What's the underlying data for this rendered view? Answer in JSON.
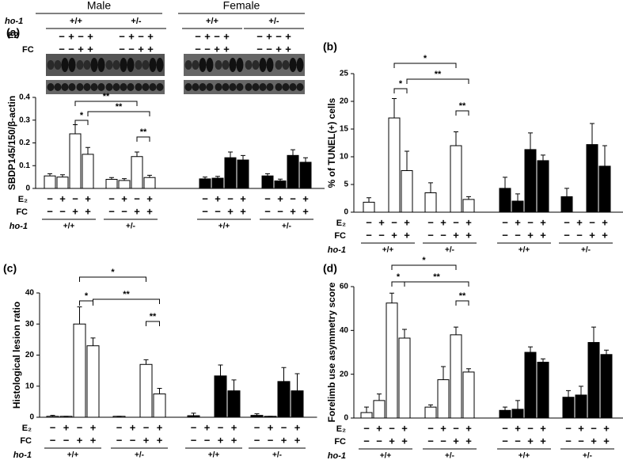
{
  "chart_data": [
    {
      "type": "bar",
      "label": "(a)",
      "ylabel": "SBDP145/150/β-actin",
      "ylim": [
        0,
        0.4
      ],
      "yticks": [
        0,
        0.1,
        0.2,
        0.3,
        0.4
      ],
      "header": {
        "sexes": [
          "Male",
          "Female"
        ],
        "e2_label": "E2"
      },
      "e2_label": "E₂",
      "fc_label": "FC",
      "geno_label": "ho-1",
      "e2_signs": [
        "−",
        "+",
        "−",
        "+"
      ],
      "fc_signs": [
        "−",
        "−",
        "+",
        "+"
      ],
      "groups": [
        {
          "genotype": "+/+",
          "color": "#ffffff",
          "values": [
            0.055,
            0.05,
            0.24,
            0.15
          ],
          "errors": [
            0.01,
            0.01,
            0.04,
            0.03
          ]
        },
        {
          "genotype": "+/-",
          "color": "#ffffff",
          "values": [
            0.04,
            0.035,
            0.14,
            0.048
          ],
          "errors": [
            0.008,
            0.008,
            0.02,
            0.01
          ]
        },
        {
          "genotype": "+/+",
          "color": "#000000",
          "values": [
            0.042,
            0.045,
            0.135,
            0.125
          ],
          "errors": [
            0.008,
            0.008,
            0.025,
            0.02
          ]
        },
        {
          "genotype": "+/-",
          "color": "#000000",
          "values": [
            0.055,
            0.033,
            0.145,
            0.115
          ],
          "errors": [
            0.01,
            0.008,
            0.025,
            0.02
          ]
        }
      ],
      "brackets": [
        {
          "label": "**",
          "from": 2,
          "to": 6
        },
        {
          "label": "**",
          "from": 3,
          "to": 7
        },
        {
          "label": "*",
          "from": 2,
          "to": 3
        },
        {
          "label": "**",
          "from": 6,
          "to": 7
        }
      ]
    },
    {
      "type": "bar",
      "label": "(b)",
      "ylabel": "% of TUNEL(+) cells",
      "ylim": [
        0,
        25
      ],
      "yticks": [
        0,
        5,
        10,
        15,
        20,
        25
      ],
      "e2_label": "E₂",
      "fc_label": "FC",
      "geno_label": "ho-1",
      "e2_signs": [
        "−",
        "+",
        "−",
        "+"
      ],
      "fc_signs": [
        "−",
        "−",
        "+",
        "+"
      ],
      "groups": [
        {
          "genotype": "+/+",
          "color": "#ffffff",
          "values": [
            1.8,
            0,
            17,
            7.5
          ],
          "errors": [
            0.8,
            0,
            3.5,
            3.5
          ]
        },
        {
          "genotype": "+/-",
          "color": "#ffffff",
          "values": [
            3.5,
            0,
            12,
            2.3
          ],
          "errors": [
            1.8,
            0,
            2.5,
            0.5
          ]
        },
        {
          "genotype": "+/+",
          "color": "#000000",
          "values": [
            4.3,
            2,
            11.3,
            9.3
          ],
          "errors": [
            2,
            1.3,
            3,
            1
          ]
        },
        {
          "genotype": "+/-",
          "color": "#000000",
          "values": [
            2.8,
            0,
            12.2,
            8.3
          ],
          "errors": [
            1.5,
            0,
            3.8,
            3.7
          ]
        }
      ],
      "brackets": [
        {
          "label": "*",
          "from": 2,
          "to": 6
        },
        {
          "label": "**",
          "from": 3,
          "to": 7
        },
        {
          "label": "*",
          "from": 2,
          "to": 3
        },
        {
          "label": "**",
          "from": 6,
          "to": 7
        }
      ]
    },
    {
      "type": "bar",
      "label": "(c)",
      "ylabel": "Histological lesion ratio",
      "ylim": [
        0,
        40
      ],
      "yticks": [
        0,
        10,
        20,
        30,
        40
      ],
      "e2_label": "E₂",
      "fc_label": "FC",
      "geno_label": "ho-1",
      "e2_signs": [
        "−",
        "+",
        "−",
        "+"
      ],
      "fc_signs": [
        "−",
        "−",
        "+",
        "+"
      ],
      "groups": [
        {
          "genotype": "+/+",
          "color": "#ffffff",
          "values": [
            0.3,
            0.3,
            30,
            23
          ],
          "errors": [
            0.3,
            0,
            5.5,
            2.5
          ]
        },
        {
          "genotype": "+/-",
          "color": "#ffffff",
          "values": [
            0.3,
            0,
            17,
            7.5
          ],
          "errors": [
            0,
            0,
            1.5,
            1.8
          ]
        },
        {
          "genotype": "+/+",
          "color": "#000000",
          "values": [
            0.5,
            0,
            13.3,
            8.5
          ],
          "errors": [
            0.8,
            0,
            3.5,
            3.5
          ]
        },
        {
          "genotype": "+/-",
          "color": "#000000",
          "values": [
            0.6,
            0.3,
            11.5,
            8.5
          ],
          "errors": [
            0.5,
            0,
            4.5,
            5.5
          ]
        }
      ],
      "brackets": [
        {
          "label": "*",
          "from": 2,
          "to": 6
        },
        {
          "label": "**",
          "from": 3,
          "to": 7
        },
        {
          "label": "*",
          "from": 2,
          "to": 3
        },
        {
          "label": "**",
          "from": 6,
          "to": 7
        }
      ]
    },
    {
      "type": "bar",
      "label": "(d)",
      "ylabel": "Forelimb use asymmetry score",
      "ylim": [
        0,
        60
      ],
      "yticks": [
        0,
        20,
        40,
        60
      ],
      "e2_label": "E₂",
      "fc_label": "FC",
      "geno_label": "ho-1",
      "e2_signs": [
        "−",
        "+",
        "−",
        "+"
      ],
      "fc_signs": [
        "−",
        "−",
        "+",
        "+"
      ],
      "groups": [
        {
          "genotype": "+/+",
          "color": "#ffffff",
          "values": [
            2.5,
            8,
            52.5,
            36.5
          ],
          "errors": [
            2.5,
            3,
            4.5,
            4
          ]
        },
        {
          "genotype": "+/-",
          "color": "#ffffff",
          "values": [
            5,
            17.5,
            38,
            21
          ],
          "errors": [
            1,
            6,
            3.5,
            1.5
          ]
        },
        {
          "genotype": "+/+",
          "color": "#000000",
          "values": [
            3.5,
            4,
            30,
            25.5
          ],
          "errors": [
            1.5,
            4,
            2.5,
            1.5
          ]
        },
        {
          "genotype": "+/-",
          "color": "#000000",
          "values": [
            9.5,
            10.5,
            34.5,
            29
          ],
          "errors": [
            3,
            4,
            7,
            2
          ]
        }
      ],
      "brackets": [
        {
          "label": "*",
          "from": 2,
          "to": 6
        },
        {
          "label": "**",
          "from": 3,
          "to": 7
        },
        {
          "label": "*",
          "from": 2,
          "to": 3
        },
        {
          "label": "**",
          "from": 6,
          "to": 7
        }
      ]
    }
  ]
}
